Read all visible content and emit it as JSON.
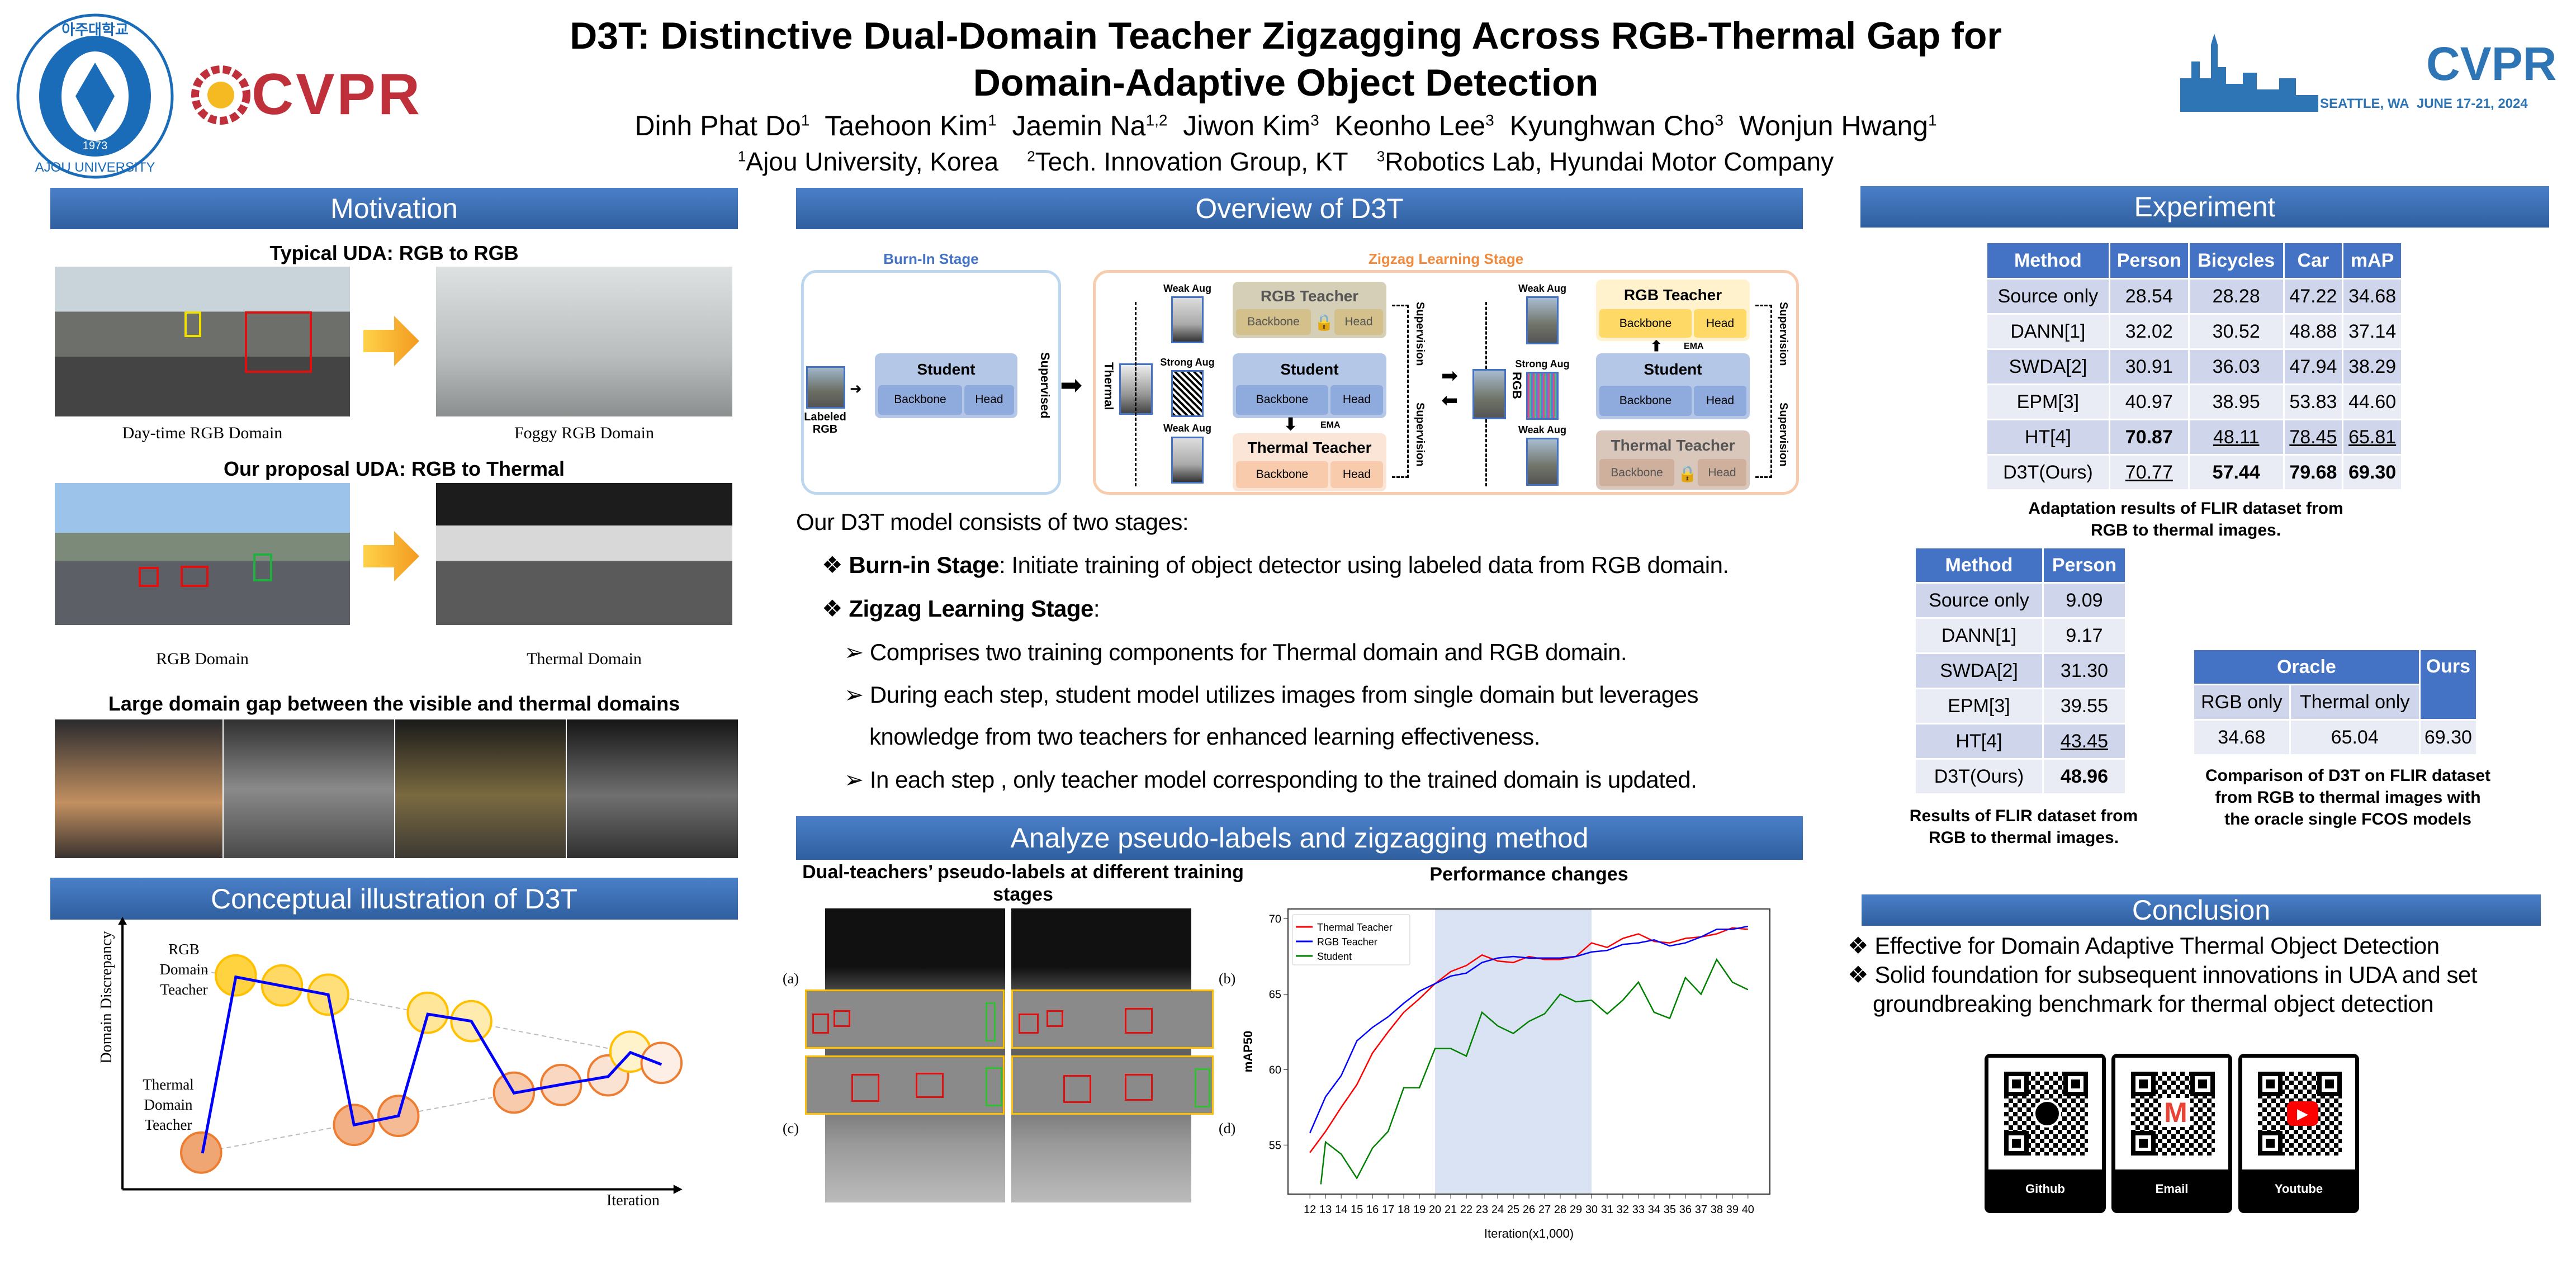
{
  "header": {
    "title_line1": "D3T: Distinctive Dual-Domain Teacher Zigzagging Across RGB-Thermal Gap for",
    "title_line2": "Domain-Adaptive Object Detection",
    "authors": [
      {
        "name": "Dinh Phat Do",
        "sup": "1"
      },
      {
        "name": "Taehoon Kim",
        "sup": "1"
      },
      {
        "name": "Jaemin Na",
        "sup": "1,2"
      },
      {
        "name": "Jiwon Kim",
        "sup": "3"
      },
      {
        "name": "Keonho Lee",
        "sup": "3"
      },
      {
        "name": "Kyunghwan Cho",
        "sup": "3"
      },
      {
        "name": "Wonjun Hwang",
        "sup": "1"
      }
    ],
    "affiliations": [
      {
        "sup": "1",
        "name": "Ajou University, Korea"
      },
      {
        "sup": "2",
        "name": "Tech. Innovation Group, KT"
      },
      {
        "sup": "3",
        "name": "Robotics Lab, Hyundai Motor Company"
      }
    ],
    "logos": {
      "ajou": {
        "korean": "아주대학교",
        "english": "AJOU UNIVERSITY",
        "year": "1973"
      },
      "cvpr_left": "CVPR",
      "cvpr_right": {
        "name": "CVPR",
        "location": "SEATTLE, WA",
        "dates": "JUNE 17-21, 2024"
      }
    }
  },
  "motivation": {
    "title": "Motivation",
    "sub1": "Typical UDA: RGB to RGB",
    "cap1a": "Day-time RGB Domain",
    "cap1b": "Foggy RGB Domain",
    "sub2": "Our proposal UDA: RGB to Thermal",
    "cap2a": "RGB Domain",
    "cap2b": "Thermal Domain",
    "sub3": "Large domain gap between the visible and thermal domains"
  },
  "concept": {
    "title": "Conceptual illustration of D3T",
    "ylabel": "Domain Discrepancy",
    "xlabel": "Iteration",
    "rgb_label": [
      "RGB",
      "Domain",
      "Teacher"
    ],
    "thermal_label": [
      "Thermal",
      "Domain",
      "Teacher"
    ],
    "colors": {
      "rgb": "#ffc000",
      "thermal": "#ed7d31",
      "path": "#0000ff"
    }
  },
  "overview": {
    "title": "Overview of D3T",
    "burnin_stage": "Burn-In Stage",
    "zigzag_stage": "Zigzag Learning Stage",
    "labeled_rgb": "Labeled RGB",
    "supervised": "Supervised",
    "thermal": "Thermal",
    "rgb": "RGB",
    "weak_aug": "Weak Aug",
    "strong_aug": "Strong Aug",
    "ema": "EMA",
    "supervision": "Supervision",
    "student": "Student",
    "rgb_teacher": "RGB Teacher",
    "thermal_teacher": "Thermal Teacher",
    "backbone": "Backbone",
    "head": "Head",
    "intro": "Our D3T model consists of two stages:",
    "burnin_bold": "Burn-in Stage",
    "burnin_text": ": Initiate training of object detector using labeled data from RGB domain.",
    "zigzag_bold": "Zigzag Learning Stage",
    "zigzag_text": ":",
    "points": [
      "Comprises two training components for Thermal domain and RGB domain.",
      "During each step, student model utilizes images from single domain but leverages",
      "knowledge from two teachers for enhanced learning effectiveness.",
      "In each step , only teacher model corresponding to the trained domain is updated."
    ]
  },
  "analyze": {
    "title": "Analyze pseudo-labels and zigzagging method",
    "pseudo_title": "Dual-teachers’ pseudo-labels at different training stages",
    "panel_labels": [
      "(a)",
      "(b)",
      "(c)",
      "(d)"
    ]
  },
  "chart_data": {
    "type": "line",
    "title": "Performance changes",
    "xlabel": "Iteration(x1,000)",
    "ylabel": "mAP50",
    "xlim": [
      10.6,
      41.4
    ],
    "ylim": [
      51.75,
      70.65
    ],
    "xticks": [
      12,
      13,
      14,
      15,
      16,
      17,
      18,
      19,
      20,
      21,
      22,
      23,
      24,
      25,
      26,
      27,
      28,
      29,
      30,
      31,
      32,
      33,
      34,
      35,
      36,
      37,
      38,
      39,
      40
    ],
    "yticks": [
      55,
      60,
      65,
      70
    ],
    "shaded_region": [
      20,
      30
    ],
    "legend": "top-left",
    "grid": false,
    "series": [
      {
        "name": "Thermal Teacher",
        "color": "#ff0000",
        "x": [
          12,
          13,
          14,
          15,
          16,
          17,
          18,
          19,
          20,
          21,
          22,
          23,
          24,
          25,
          26,
          27,
          28,
          29,
          30,
          31,
          32,
          33,
          34,
          35,
          36,
          37,
          38,
          39,
          40
        ],
        "values": [
          54.5,
          55.9,
          57.5,
          59.0,
          61.1,
          62.5,
          63.8,
          64.7,
          65.7,
          66.5,
          66.9,
          67.6,
          67.2,
          67.1,
          67.5,
          67.3,
          67.3,
          67.5,
          68.4,
          68.1,
          68.7,
          69.0,
          68.5,
          68.4,
          68.7,
          68.8,
          69.0,
          69.4,
          69.3
        ]
      },
      {
        "name": "RGB Teacher",
        "color": "#0000ff",
        "x": [
          12,
          13,
          14,
          15,
          16,
          17,
          18,
          19,
          20,
          21,
          22,
          23,
          24,
          25,
          26,
          27,
          28,
          29,
          30,
          31,
          32,
          33,
          34,
          35,
          36,
          37,
          38,
          39,
          40
        ],
        "values": [
          55.8,
          58.2,
          59.6,
          61.9,
          62.8,
          63.5,
          64.4,
          65.2,
          65.7,
          66.2,
          66.4,
          67.1,
          67.4,
          67.5,
          67.4,
          67.4,
          67.4,
          67.5,
          67.8,
          67.9,
          68.3,
          68.4,
          68.6,
          68.2,
          68.4,
          68.8,
          69.3,
          69.3,
          69.5
        ]
      },
      {
        "name": "Student",
        "color": "#008000",
        "x": [
          12.7,
          13,
          14,
          15,
          16,
          17,
          18,
          19,
          20,
          21,
          22,
          23,
          24,
          25,
          26,
          27,
          28,
          29,
          30,
          31,
          32,
          33,
          34,
          35,
          36,
          37,
          38,
          39,
          40
        ],
        "values": [
          52.4,
          55.2,
          54.4,
          52.8,
          54.8,
          55.9,
          58.8,
          58.8,
          61.4,
          61.4,
          60.9,
          63.8,
          62.9,
          62.4,
          63.2,
          63.7,
          65.0,
          64.5,
          64.6,
          63.7,
          64.6,
          65.8,
          63.8,
          63.4,
          66.1,
          65.0,
          67.3,
          65.8,
          65.3
        ]
      }
    ]
  },
  "experiment": {
    "title": "Experiment",
    "table1": {
      "headers": [
        "Method",
        "Person",
        "Bicycles",
        "Car",
        "mAP"
      ],
      "rows": [
        [
          "Source only",
          "28.54",
          "28.28",
          "47.22",
          "34.68"
        ],
        [
          "DANN[1]",
          "32.02",
          "30.52",
          "48.88",
          "37.14"
        ],
        [
          "SWDA[2]",
          "30.91",
          "36.03",
          "47.94",
          "38.29"
        ],
        [
          "EPM[3]",
          "40.97",
          "38.95",
          "53.83",
          "44.60"
        ],
        [
          "HT[4]",
          "70.87",
          "48.11",
          "78.45",
          "65.81"
        ],
        [
          "D3T(Ours)",
          "70.77",
          "57.44",
          "79.68",
          "69.30"
        ]
      ],
      "caption": "Adaptation results of FLIR dataset from RGB to thermal images."
    },
    "table2": {
      "headers": [
        "Method",
        "Person"
      ],
      "rows": [
        [
          "Source only",
          "9.09"
        ],
        [
          "DANN[1]",
          "9.17"
        ],
        [
          "SWDA[2]",
          "31.30"
        ],
        [
          "EPM[3]",
          "39.55"
        ],
        [
          "HT[4]",
          "43.45"
        ],
        [
          "D3T(Ours)",
          "48.96"
        ]
      ],
      "caption": "Results of FLIR dataset from RGB to thermal images."
    },
    "table3": {
      "oracle": "Oracle",
      "ours": "Ours",
      "sub": [
        "RGB only",
        "Thermal only"
      ],
      "values": [
        "34.68",
        "65.04",
        "69.30"
      ],
      "caption": "Comparison of D3T on FLIR dataset from RGB to thermal images with the oracle single FCOS models"
    }
  },
  "conclusion": {
    "title": "Conclusion",
    "bullets": [
      "Effective for Domain Adaptive Thermal Object Detection",
      "Solid foundation for subsequent innovations in UDA and set",
      "groundbreaking benchmark for thermal object detection"
    ],
    "qr": [
      {
        "label": "Github",
        "icon": "github-icon"
      },
      {
        "label": "Email",
        "icon": "gmail-icon"
      },
      {
        "label": "Youtube",
        "icon": "youtube-icon"
      }
    ]
  }
}
